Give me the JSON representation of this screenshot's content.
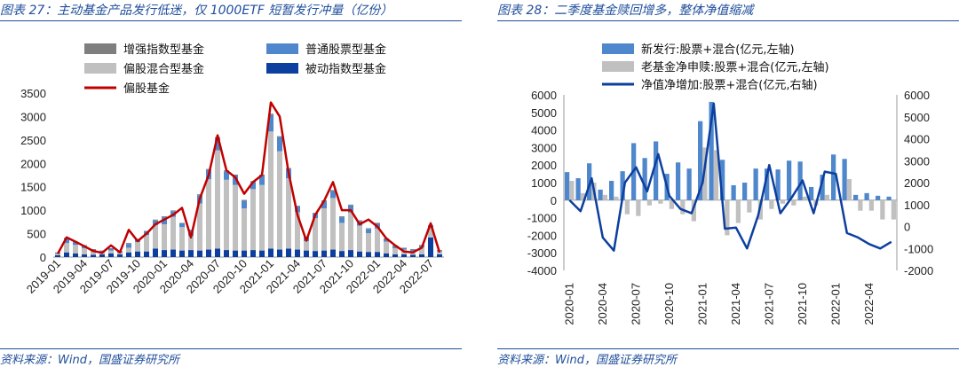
{
  "left": {
    "title": "图表 27：主动基金产品发行低迷，仅 1000ETF 短暂发行冲量（亿份）",
    "source": "资料来源：Wind，国盛证券研究所"
  },
  "right": {
    "title": "图表 28：二季度基金赎回增多，整体净值缩减",
    "source": "资料来源：Wind，国盛证券研究所"
  },
  "colors": {
    "title_blue": "#1f4e9b",
    "enhanced_index": "#7f7f7f",
    "equity_fund": "#4f87cd",
    "hybrid_fund": "#c0c0c0",
    "passive_index": "#0d3f9e",
    "equity_line": "#c00000",
    "new_issue": "#4f87cd",
    "old_net_sub": "#c0c0c0",
    "nav_line": "#0d3f9e"
  },
  "chart_data": [
    {
      "type": "bar",
      "stacked": true,
      "ylim": [
        0,
        3500
      ],
      "yticks": [
        0,
        500,
        1000,
        1500,
        2000,
        2500,
        3000,
        3500
      ],
      "x_tick_labels": [
        "2019-01",
        "2019-04",
        "2019-07",
        "2019-10",
        "2020-01",
        "2020-04",
        "2020-07",
        "2020-10",
        "2021-01",
        "2021-04",
        "2021-07",
        "2021-10",
        "2022-01",
        "2022-04",
        "2022-07"
      ],
      "categories": [
        "2019-01",
        "2019-02",
        "2019-03",
        "2019-04",
        "2019-05",
        "2019-06",
        "2019-07",
        "2019-08",
        "2019-09",
        "2019-10",
        "2019-11",
        "2019-12",
        "2020-01",
        "2020-02",
        "2020-03",
        "2020-04",
        "2020-05",
        "2020-06",
        "2020-07",
        "2020-08",
        "2020-09",
        "2020-10",
        "2020-11",
        "2020-12",
        "2021-01",
        "2021-02",
        "2021-03",
        "2021-04",
        "2021-05",
        "2021-06",
        "2021-07",
        "2021-08",
        "2021-09",
        "2021-10",
        "2021-11",
        "2021-12",
        "2022-01",
        "2022-02",
        "2022-03",
        "2022-04",
        "2022-05",
        "2022-06",
        "2022-07",
        "2022-08"
      ],
      "legend_position": "top",
      "series": [
        {
          "name": "增强指数型基金",
          "kind": "bar",
          "values": [
            10,
            15,
            10,
            15,
            10,
            10,
            10,
            10,
            20,
            15,
            10,
            20,
            20,
            15,
            10,
            15,
            20,
            20,
            30,
            20,
            20,
            20,
            20,
            20,
            30,
            20,
            20,
            15,
            10,
            15,
            20,
            20,
            20,
            20,
            15,
            15,
            20,
            10,
            10,
            10,
            10,
            10,
            15,
            10
          ]
        },
        {
          "name": "普通股票型基金",
          "kind": "bar",
          "values": [
            20,
            100,
            60,
            50,
            40,
            30,
            40,
            30,
            80,
            50,
            80,
            100,
            150,
            120,
            80,
            120,
            180,
            200,
            250,
            180,
            200,
            160,
            150,
            200,
            350,
            300,
            200,
            120,
            80,
            100,
            150,
            150,
            120,
            150,
            100,
            90,
            100,
            60,
            50,
            30,
            30,
            40,
            50,
            20
          ]
        },
        {
          "name": "偏股混合型基金",
          "kind": "bar",
          "values": [
            30,
            200,
            180,
            130,
            70,
            40,
            60,
            30,
            100,
            200,
            350,
            500,
            550,
            700,
            500,
            300,
            1000,
            1500,
            2100,
            1500,
            1400,
            900,
            1300,
            1400,
            2500,
            2100,
            1500,
            800,
            200,
            700,
            900,
            1100,
            600,
            800,
            550,
            400,
            500,
            250,
            130,
            100,
            80,
            150,
            200,
            60
          ]
        },
        {
          "name": "被动指数型基金",
          "kind": "bar",
          "values": [
            40,
            100,
            80,
            60,
            50,
            60,
            80,
            60,
            100,
            120,
            120,
            180,
            150,
            160,
            140,
            150,
            140,
            160,
            180,
            150,
            140,
            140,
            150,
            140,
            180,
            160,
            180,
            160,
            140,
            130,
            140,
            160,
            130,
            150,
            120,
            110,
            110,
            80,
            60,
            60,
            50,
            60,
            420,
            60
          ]
        },
        {
          "name": "偏股基金",
          "kind": "line",
          "values": [
            70,
            420,
            330,
            230,
            130,
            90,
            250,
            100,
            580,
            340,
            500,
            700,
            800,
            900,
            1050,
            420,
            1250,
            1750,
            2600,
            1850,
            1700,
            1350,
            1600,
            1750,
            3300,
            3000,
            1800,
            900,
            350,
            900,
            1200,
            1600,
            1000,
            1000,
            700,
            800,
            650,
            400,
            250,
            120,
            100,
            200,
            720,
            100
          ]
        }
      ]
    },
    {
      "type": "bar",
      "dual_axis": true,
      "ylim_left": [
        -4000,
        6000
      ],
      "yticks_left": [
        -4000,
        -3000,
        -2000,
        -1000,
        0,
        1000,
        2000,
        3000,
        4000,
        5000,
        6000
      ],
      "ylim_right": [
        -2000,
        6000
      ],
      "yticks_right": [
        -2000,
        -1000,
        0,
        1000,
        2000,
        3000,
        4000,
        5000,
        6000
      ],
      "x_tick_labels": [
        "2020-01",
        "2020-04",
        "2020-07",
        "2020-10",
        "2021-01",
        "2021-04",
        "2021-07",
        "2021-10",
        "2022-01",
        "2022-04"
      ],
      "categories": [
        "2020-01",
        "2020-02",
        "2020-03",
        "2020-04",
        "2020-05",
        "2020-06",
        "2020-07",
        "2020-08",
        "2020-09",
        "2020-10",
        "2020-11",
        "2020-12",
        "2021-01",
        "2021-02",
        "2021-03",
        "2021-04",
        "2021-05",
        "2021-06",
        "2021-07",
        "2021-08",
        "2021-09",
        "2021-10",
        "2021-11",
        "2021-12",
        "2022-01",
        "2022-02",
        "2022-03",
        "2022-04",
        "2022-05",
        "2022-06"
      ],
      "legend_position": "top",
      "series": [
        {
          "name": "新发行:股票+混合(亿元,左轴)",
          "kind": "bar",
          "axis": "left",
          "values": [
            1600,
            1250,
            2100,
            600,
            1100,
            1650,
            3250,
            2400,
            3350,
            1500,
            2150,
            1800,
            4500,
            5600,
            2300,
            850,
            1000,
            1800,
            1800,
            1750,
            2250,
            2200,
            750,
            1450,
            2600,
            2350,
            300,
            400,
            250,
            200
          ]
        },
        {
          "name": "老基金净申赎:股票+混合(亿元,左轴)",
          "kind": "bar",
          "axis": "left",
          "values": [
            1100,
            400,
            1000,
            300,
            200,
            -800,
            -900,
            -300,
            -200,
            -500,
            -800,
            -1200,
            3000,
            2850,
            -2000,
            -1300,
            -700,
            -1100,
            -500,
            -200,
            -300,
            200,
            -300,
            300,
            0,
            1200,
            -600,
            -600,
            -1100,
            -1100
          ]
        },
        {
          "name": "净值净增加:股票+混合(亿元,右轴)",
          "kind": "line",
          "axis": "right",
          "values": [
            1200,
            700,
            2200,
            -500,
            -1100,
            2000,
            2700,
            1600,
            3300,
            1400,
            800,
            600,
            2000,
            5600,
            -100,
            -50,
            -1000,
            500,
            2800,
            600,
            1300,
            2100,
            600,
            2500,
            2400,
            -300,
            -500,
            -800,
            -1000,
            -700
          ]
        }
      ]
    }
  ]
}
